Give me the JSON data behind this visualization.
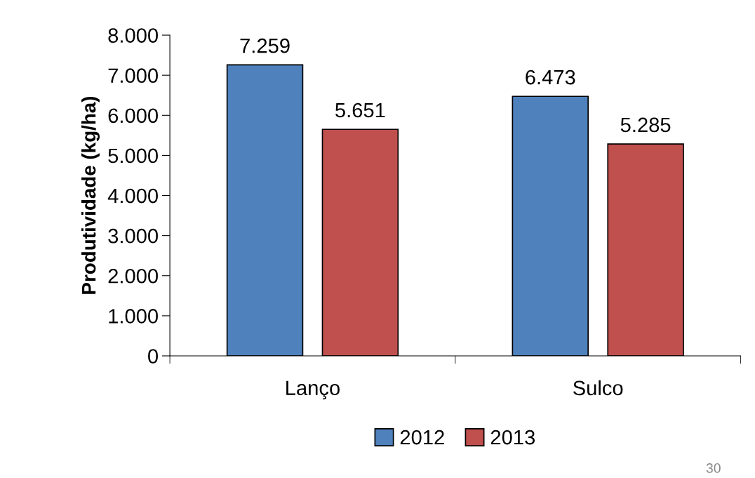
{
  "chart_data": {
    "type": "bar",
    "ylabel": "Produtividade (kg/ha)",
    "categories": [
      "Lanço",
      "Sulco"
    ],
    "series": [
      {
        "name": "2012",
        "color": "#4f81bd",
        "values": [
          7259,
          6473
        ],
        "value_labels": [
          "7.259",
          "6.473"
        ]
      },
      {
        "name": "2013",
        "color": "#c0504d",
        "values": [
          5651,
          5285
        ],
        "value_labels": [
          "5.651",
          "5.285"
        ]
      }
    ],
    "ylim": [
      0,
      8000
    ],
    "yticks": [
      0,
      {
        "value": 1000,
        "label": "1.000"
      },
      {
        "value": 2000,
        "label": "2.000"
      },
      {
        "value": 3000,
        "label": "3.000"
      },
      {
        "value": 4000,
        "label": "4.000"
      },
      {
        "value": 5000,
        "label": "5.000"
      },
      {
        "value": 6000,
        "label": "6.000"
      },
      {
        "value": 7000,
        "label": "7.000"
      },
      {
        "value": 8000,
        "label": "8.000"
      }
    ],
    "grid": false,
    "legend": "bottom",
    "annotations": [
      "30"
    ]
  }
}
